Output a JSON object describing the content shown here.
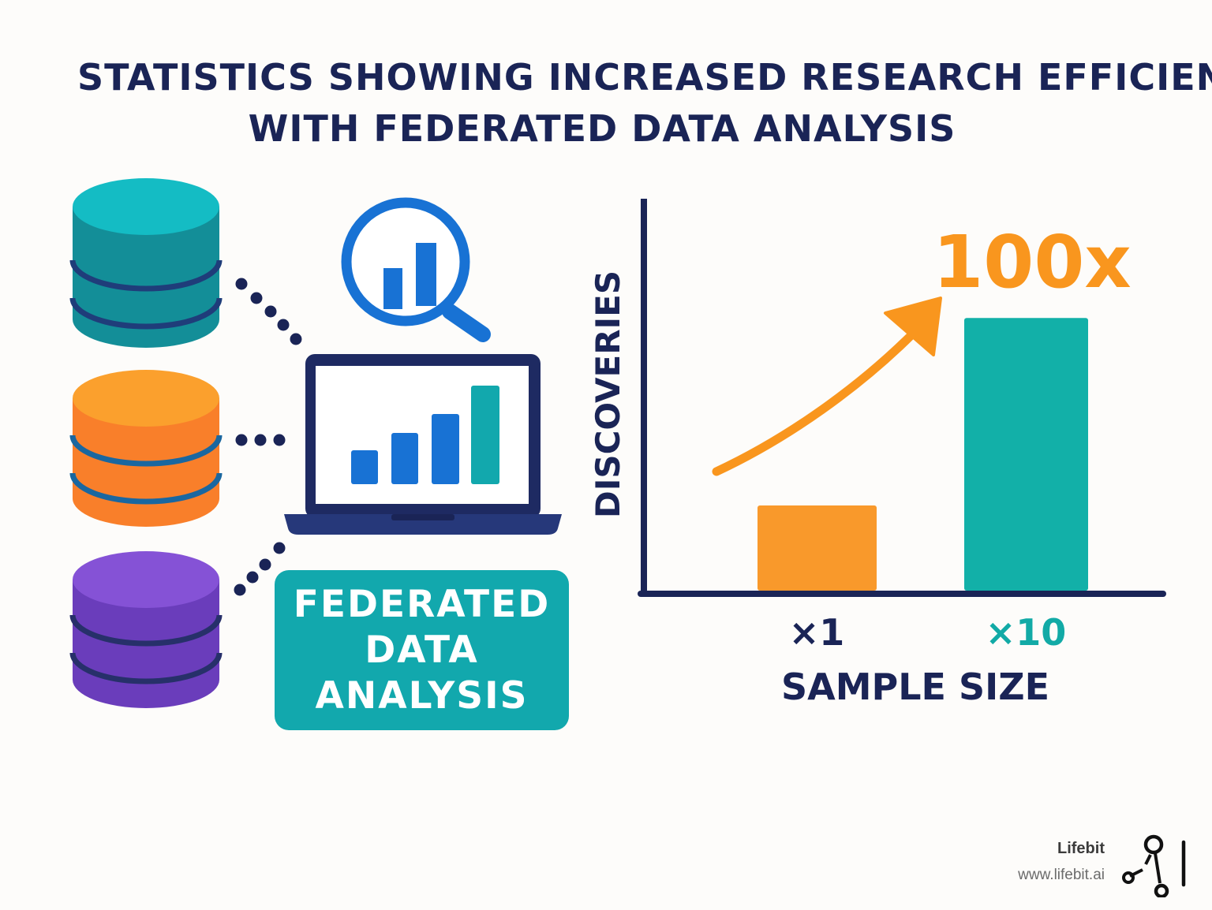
{
  "title": {
    "line1": "STATISTICS SHOWING INCREASED RESEARCH EFFICIENC",
    "line2": "WITH FEDERATED DATA ANALYSIS"
  },
  "illustration": {
    "databases": [
      {
        "name": "database-teal",
        "color": "#15a2ad"
      },
      {
        "name": "database-orange",
        "color": "#f98a2a"
      },
      {
        "name": "database-purple",
        "color": "#7446c4"
      }
    ],
    "box_lines": [
      "FEDERATED",
      "DATA",
      "ANALYSIS"
    ],
    "box_color": "#12a8ad",
    "icons": [
      "database-icon",
      "magnifier-chart-icon",
      "laptop-chart-icon",
      "connector-dots-icon"
    ]
  },
  "chart_data": {
    "type": "bar",
    "categories": [
      "×1",
      "×10"
    ],
    "values": [
      1,
      3.2
    ],
    "bar_colors": [
      "#f9992b",
      "#12b0a8"
    ],
    "category_label_colors": [
      "#1a2456",
      "#12aaa6"
    ],
    "annotation": "100x",
    "annotation_color": "#f9961e",
    "xlabel": "SAMPLE SIZE",
    "ylabel": "DISCOVERIES",
    "ylim": [
      0,
      4.6
    ],
    "title": "",
    "grid": false
  },
  "brand": {
    "name": "Lifebit",
    "url": "www.lifebit.ai"
  },
  "colors": {
    "navy": "#1a2456",
    "blue": "#1872d4",
    "background": "#fdfcfa"
  }
}
